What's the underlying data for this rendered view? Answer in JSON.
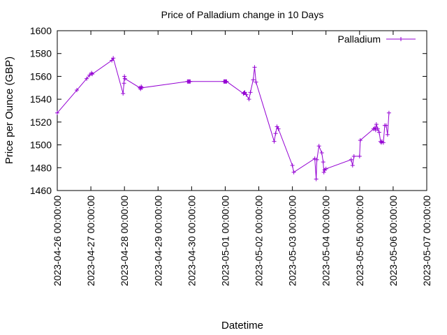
{
  "chart_data": {
    "type": "line",
    "title": "Price of Palladium change in 10 Days",
    "xlabel": "Datetime",
    "ylabel": "Price per Ounce (GBP)",
    "x_range": [
      "2023-04-26 00:00:00",
      "2023-05-07 00:00:00"
    ],
    "x_ticks": [
      "2023-04-26 00:00:00",
      "2023-04-27 00:00:00",
      "2023-04-28 00:00:00",
      "2023-04-29 00:00:00",
      "2023-04-30 00:00:00",
      "2023-05-01 00:00:00",
      "2023-05-02 00:00:00",
      "2023-05-03 00:00:00",
      "2023-05-04 00:00:00",
      "2023-05-05 00:00:00",
      "2023-05-06 00:00:00",
      "2023-05-07 00:00:00"
    ],
    "ylim": [
      1460,
      1600
    ],
    "y_ticks": [
      1460,
      1480,
      1500,
      1520,
      1540,
      1560,
      1580,
      1600
    ],
    "grid": false,
    "legend_position": "top-right",
    "series": [
      {
        "name": "Palladium",
        "color": "#9400d3",
        "marker": "plus",
        "points": [
          [
            "2023-04-26 00:00",
            1528
          ],
          [
            "2023-04-26 14:00",
            1548
          ],
          [
            "2023-04-26 21:00",
            1558
          ],
          [
            "2023-04-26 23:00",
            1561
          ],
          [
            "2023-04-27 00:30",
            1563
          ],
          [
            "2023-04-27 01:00",
            1562
          ],
          [
            "2023-04-27 15:00",
            1574
          ],
          [
            "2023-04-27 16:00",
            1576
          ],
          [
            "2023-04-27 23:00",
            1545
          ],
          [
            "2023-04-27 23:40",
            1554
          ],
          [
            "2023-04-28 00:00",
            1560
          ],
          [
            "2023-04-28 00:20",
            1558
          ],
          [
            "2023-04-28 11:00",
            1550
          ],
          [
            "2023-04-28 11:30",
            1549
          ],
          [
            "2023-04-28 12:00",
            1551
          ],
          [
            "2023-04-28 12:30",
            1550
          ],
          [
            "2023-04-29 21:00",
            1555.5
          ],
          [
            "2023-04-29 21:30",
            1555.5
          ],
          [
            "2023-04-29 22:00",
            1555.5
          ],
          [
            "2023-04-29 22:30",
            1555.5
          ],
          [
            "2023-04-29 23:00",
            1555.5
          ],
          [
            "2023-04-30 23:00",
            1555.5
          ],
          [
            "2023-04-30 23:30",
            1555.5
          ],
          [
            "2023-05-01 00:00",
            1555.5
          ],
          [
            "2023-05-01 00:30",
            1555.5
          ],
          [
            "2023-05-01 01:00",
            1555.5
          ],
          [
            "2023-05-01 13:00",
            1545
          ],
          [
            "2023-05-01 13:30",
            1545.5
          ],
          [
            "2023-05-01 14:00",
            1546
          ],
          [
            "2023-05-01 15:00",
            1544
          ],
          [
            "2023-05-01 17:00",
            1540
          ],
          [
            "2023-05-01 18:00",
            1546
          ],
          [
            "2023-05-01 20:00",
            1557
          ],
          [
            "2023-05-01 21:00",
            1568
          ],
          [
            "2023-05-01 22:00",
            1555
          ],
          [
            "2023-05-02 11:00",
            1503
          ],
          [
            "2023-05-02 12:00",
            1510
          ],
          [
            "2023-05-02 13:00",
            1516
          ],
          [
            "2023-05-02 14:00",
            1514
          ],
          [
            "2023-05-03 00:00",
            1482
          ],
          [
            "2023-05-03 01:00",
            1476
          ],
          [
            "2023-05-03 16:00",
            1488
          ],
          [
            "2023-05-03 17:00",
            1470
          ],
          [
            "2023-05-03 17:30",
            1487
          ],
          [
            "2023-05-03 19:00",
            1499
          ],
          [
            "2023-05-03 21:00",
            1493
          ],
          [
            "2023-05-03 22:00",
            1485
          ],
          [
            "2023-05-03 22:30",
            1476
          ],
          [
            "2023-05-03 23:00",
            1478
          ],
          [
            "2023-05-04 00:00",
            1479
          ],
          [
            "2023-05-04 18:00",
            1487
          ],
          [
            "2023-05-04 19:00",
            1482
          ],
          [
            "2023-05-04 20:00",
            1490
          ],
          [
            "2023-05-05 00:00",
            1490
          ],
          [
            "2023-05-05 00:30",
            1504
          ],
          [
            "2023-05-05 10:00",
            1514
          ],
          [
            "2023-05-05 11:00",
            1515
          ],
          [
            "2023-05-05 11:30",
            1513
          ],
          [
            "2023-05-05 12:00",
            1518
          ],
          [
            "2023-05-05 13:00",
            1514
          ],
          [
            "2023-05-05 14:00",
            1511
          ],
          [
            "2023-05-05 15:00",
            1503
          ],
          [
            "2023-05-05 15:30",
            1502
          ],
          [
            "2023-05-05 16:00",
            1503
          ],
          [
            "2023-05-05 17:00",
            1502
          ],
          [
            "2023-05-05 18:00",
            1517
          ],
          [
            "2023-05-05 19:00",
            1517
          ],
          [
            "2023-05-05 20:00",
            1509
          ],
          [
            "2023-05-05 21:00",
            1528
          ]
        ]
      }
    ]
  }
}
